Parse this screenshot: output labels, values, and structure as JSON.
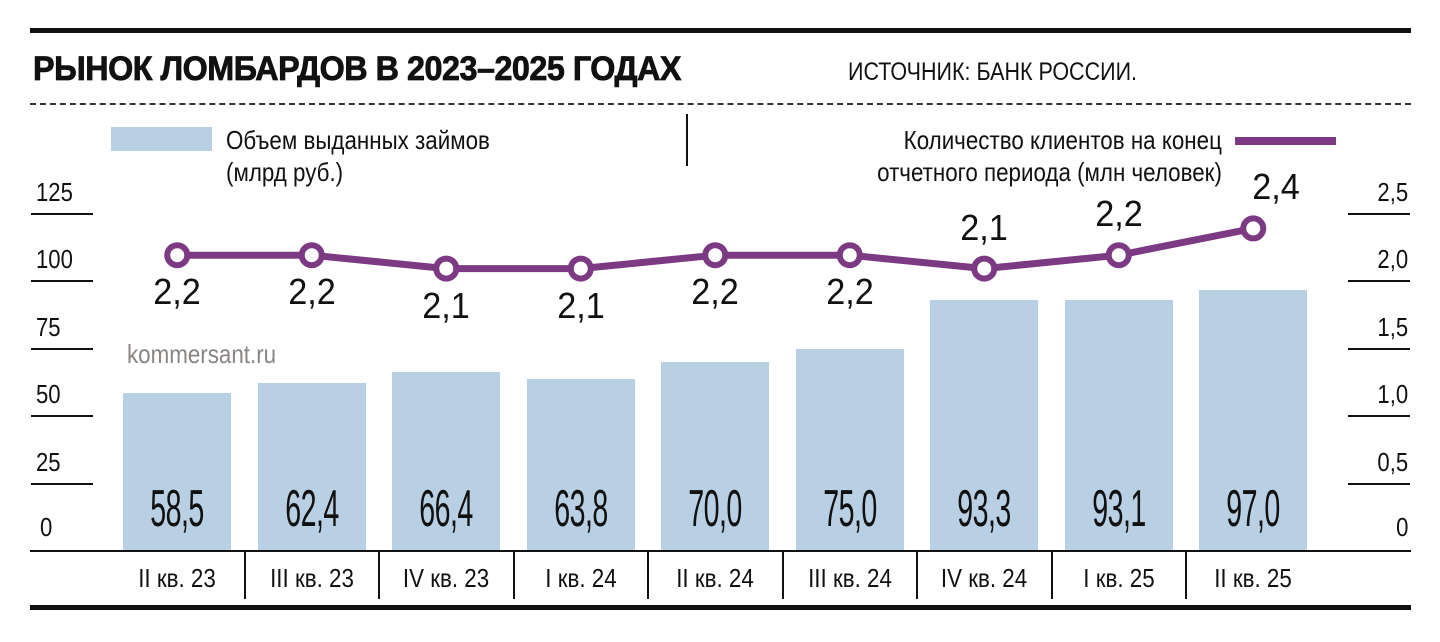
{
  "header": {
    "title": "РЫНОК ЛОМБАРДОВ В 2023–2025 ГОДАХ",
    "source": "ИСТОЧНИК: БАНК РОССИИ."
  },
  "legend": {
    "bars_line1": "Объем выданных займов",
    "bars_line2": "(млрд руб.)",
    "line_line1": "Количество клиентов на конец",
    "line_line2": "отчетного периода (млн человек)"
  },
  "watermark": "kommersant.ru",
  "colors": {
    "bar": "#b8cfe4",
    "line": "#7b3a82",
    "text": "#111111",
    "watermark": "#8a8582"
  },
  "left_axis": {
    "ticks": [
      "125",
      "100",
      "75",
      "50",
      "25",
      "0"
    ]
  },
  "right_axis": {
    "ticks": [
      "2,5",
      "2,0",
      "1,5",
      "1,0",
      "0,5",
      "0"
    ]
  },
  "categories": [
    "II кв. 23",
    "III кв. 23",
    "IV кв. 23",
    "I кв. 24",
    "II кв. 24",
    "III кв. 24",
    "IV кв. 24",
    "I кв. 25",
    "II кв. 25"
  ],
  "bar_labels": [
    "58,5",
    "62,4",
    "66,4",
    "63,8",
    "70,0",
    "75,0",
    "93,3",
    "93,1",
    "97,0"
  ],
  "point_labels": [
    "2,2",
    "2,2",
    "2,1",
    "2,1",
    "2,2",
    "2,2",
    "2,1",
    "2,2",
    "2,4"
  ],
  "chart_data": {
    "type": "bar",
    "title": "РЫНОК ЛОМБАРДОВ В 2023–2025 ГОДАХ",
    "subtitle": "ИСТОЧНИК: БАНК РОССИИ.",
    "categories": [
      "II кв. 23",
      "III кв. 23",
      "IV кв. 23",
      "I кв. 24",
      "II кв. 24",
      "III кв. 24",
      "IV кв. 24",
      "I кв. 25",
      "II кв. 25"
    ],
    "series": [
      {
        "name": "Объем выданных займов (млрд руб.)",
        "type": "bar",
        "axis": "left",
        "color": "#b8cfe4",
        "values": [
          58.5,
          62.4,
          66.4,
          63.8,
          70.0,
          75.0,
          93.3,
          93.1,
          97.0
        ]
      },
      {
        "name": "Количество клиентов на конец отчетного периода (млн человек)",
        "type": "line",
        "axis": "right",
        "color": "#7b3a82",
        "values": [
          2.2,
          2.2,
          2.1,
          2.1,
          2.2,
          2.2,
          2.1,
          2.2,
          2.4
        ]
      }
    ],
    "xlabel": "",
    "ylabel_left": "млрд руб.",
    "ylabel_right": "млн человек",
    "ylim_left": [
      0,
      125
    ],
    "yticks_left": [
      0,
      25,
      50,
      75,
      100,
      125
    ],
    "ylim_right": [
      0,
      2.5
    ],
    "yticks_right": [
      0,
      0.5,
      1.0,
      1.5,
      2.0,
      2.5
    ],
    "grid": false,
    "legend_position": "top",
    "annotations": [
      "kommersant.ru"
    ]
  }
}
